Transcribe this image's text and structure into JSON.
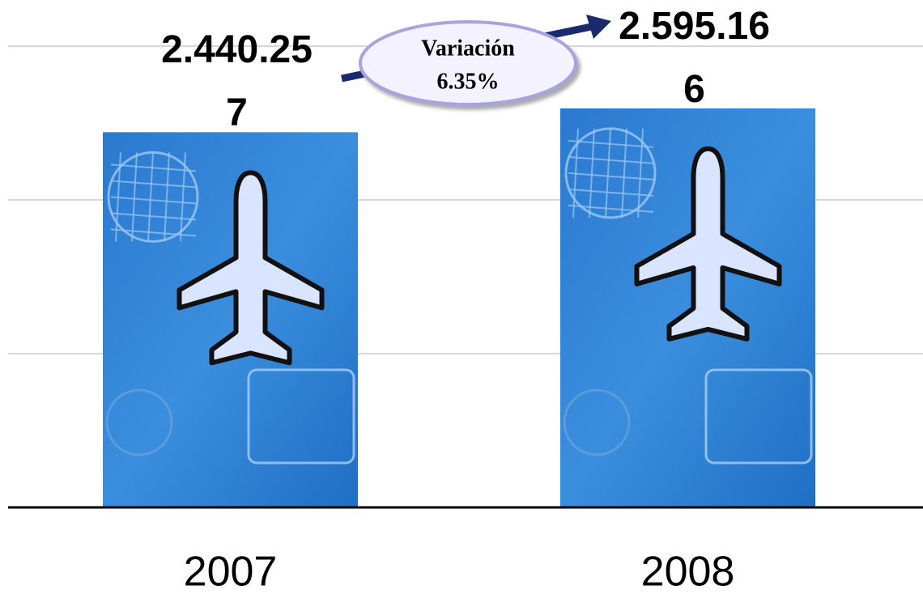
{
  "chart_data": {
    "type": "bar",
    "categories": [
      "2007",
      "2008"
    ],
    "values": [
      2440257,
      2595166
    ],
    "value_labels": [
      "2.440.257",
      "2.595.166"
    ],
    "annotation": [
      "Variación",
      "6.35%"
    ],
    "color": "#2f7fd0",
    "ylim": [
      0,
      3000000
    ],
    "yticks": [
      0,
      1000000,
      2000000,
      3000000
    ],
    "grid": true
  }
}
